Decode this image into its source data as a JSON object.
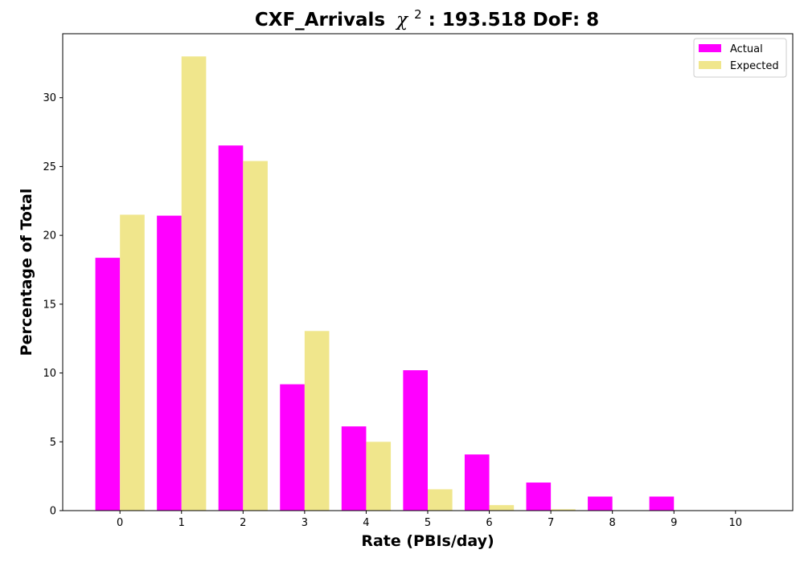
{
  "chart_data": {
    "type": "bar",
    "title": "CXF_Arrivals",
    "title_chi_symbol": "χ",
    "title_chi_exponent": "2",
    "title_rest": ": 193.518 DoF: 8",
    "xlabel": "Rate (PBIs/day)",
    "ylabel": "Percentage of Total",
    "categories": [
      "0",
      "1",
      "2",
      "3",
      "4",
      "5",
      "6",
      "7",
      "8",
      "9",
      "10"
    ],
    "x": [
      0,
      1,
      2,
      3,
      4,
      5,
      6,
      7,
      8,
      9,
      10
    ],
    "series": [
      {
        "name": "Actual",
        "color": "#ff00ff",
        "values": [
          18.37,
          21.43,
          26.53,
          9.18,
          6.12,
          10.2,
          4.08,
          2.04,
          1.02,
          1.02,
          0
        ]
      },
      {
        "name": "Expected",
        "color": "#f0e68c",
        "values": [
          21.5,
          33.0,
          25.4,
          13.05,
          5.0,
          1.55,
          0.4,
          0.1,
          0.03,
          0.005,
          0.001
        ]
      }
    ],
    "yticks": [
      0,
      5,
      10,
      15,
      20,
      25,
      30
    ],
    "xlim": [
      -0.93,
      10.93
    ],
    "ylim": [
      0,
      34.65
    ],
    "legend_position": "top-right",
    "grid": false
  }
}
